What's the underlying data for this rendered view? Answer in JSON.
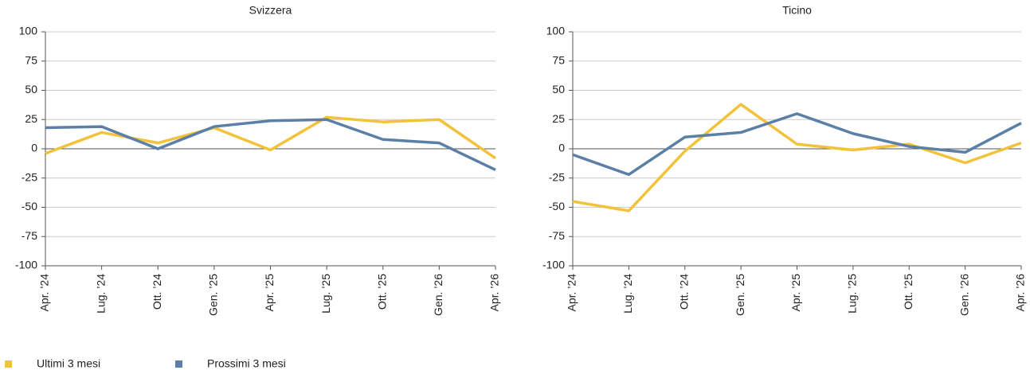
{
  "chart_data": [
    {
      "type": "line",
      "title": "Svizzera",
      "categories": [
        "Apr. ’24",
        "Lug. ’24",
        "Ott. ’24",
        "Gen. ’25",
        "Apr. ’25",
        "Lug. ’25",
        "Ott. ’25",
        "Gen. ’26",
        "Apr. ’26"
      ],
      "series": [
        {
          "name": "Ultimi 3 mesi",
          "color": "#f2c23a",
          "values": [
            -4,
            14,
            5,
            18,
            -1,
            27,
            23,
            25,
            -8
          ]
        },
        {
          "name": "Prossimi 3 mesi",
          "color": "#5b7fa6",
          "values": [
            18,
            19,
            0,
            19,
            24,
            25,
            8,
            5,
            -18
          ]
        }
      ],
      "ylim": [
        -100,
        100
      ],
      "yticks": [
        -100,
        -75,
        -50,
        -25,
        0,
        25,
        50,
        75,
        100
      ],
      "grid": true
    },
    {
      "type": "line",
      "title": "Ticino",
      "categories": [
        "Apr. ’24",
        "Lug. ’24",
        "Ott. ’24",
        "Gen. ’25",
        "Apr. ’25",
        "Lug. ’25",
        "Ott. ’25",
        "Gen. ’26",
        "Apr. ’26"
      ],
      "series": [
        {
          "name": "Ultimi 3 mesi",
          "color": "#f2c23a",
          "values": [
            -45,
            -53,
            -2,
            38,
            4,
            -1,
            4,
            -12,
            5
          ]
        },
        {
          "name": "Prossimi 3 mesi",
          "color": "#5b7fa6",
          "values": [
            -5,
            -22,
            10,
            14,
            30,
            13,
            2,
            -3,
            22
          ]
        }
      ],
      "ylim": [
        -100,
        100
      ],
      "yticks": [
        -100,
        -75,
        -50,
        -25,
        0,
        25,
        50,
        75,
        100
      ],
      "grid": true
    }
  ]
}
